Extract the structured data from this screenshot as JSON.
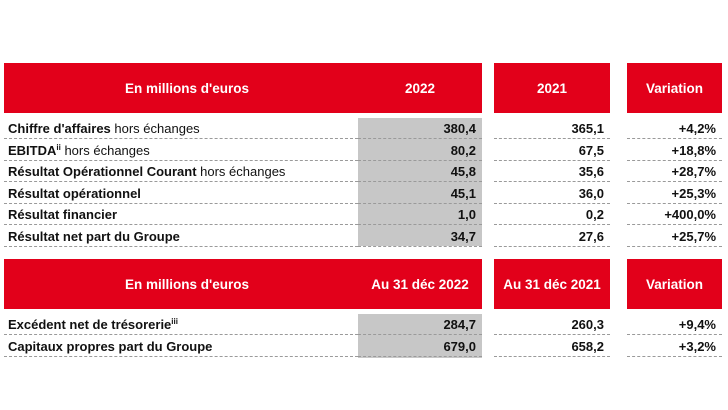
{
  "table1": {
    "headers": [
      "En millions d'euros",
      "2022",
      "2021",
      "Variation"
    ],
    "rows": [
      {
        "bold": "Chiffre d'affaires",
        "sup": "",
        "light": " hors échanges",
        "v2022": "380,4",
        "v2021": "365,1",
        "variation": "+4,2%"
      },
      {
        "bold": "EBITDA",
        "sup": "ii",
        "light": " hors échanges",
        "v2022": "80,2",
        "v2021": "67,5",
        "variation": "+18,8%"
      },
      {
        "bold": "Résultat Opérationnel Courant",
        "sup": "",
        "light": " hors échanges",
        "v2022": "45,8",
        "v2021": "35,6",
        "variation": "+28,7%"
      },
      {
        "bold": "Résultat opérationnel",
        "sup": "",
        "light": "",
        "v2022": "45,1",
        "v2021": "36,0",
        "variation": "+25,3%"
      },
      {
        "bold": "Résultat financier",
        "sup": "",
        "light": "",
        "v2022": "1,0",
        "v2021": "0,2",
        "variation": "+400,0%"
      },
      {
        "bold": "Résultat net part du Groupe",
        "sup": "",
        "light": "",
        "v2022": "34,7",
        "v2021": "27,6",
        "variation": "+25,7%"
      }
    ]
  },
  "table2": {
    "headers": [
      "En millions d'euros",
      "Au 31 déc 2022",
      "Au 31 déc 2021",
      "Variation"
    ],
    "rows": [
      {
        "bold": "Excédent net de trésorerie",
        "sup": "iii",
        "light": "",
        "v2022": "284,7",
        "v2021": "260,3",
        "variation": "+9,4%"
      },
      {
        "bold": "Capitaux propres part du Groupe",
        "sup": "",
        "light": "",
        "v2022": "679,0",
        "v2021": "658,2",
        "variation": "+3,2%"
      }
    ]
  },
  "colors": {
    "header_bg": "#e2001a",
    "header_text": "#ffffff",
    "shade": "#c7c7c7"
  }
}
